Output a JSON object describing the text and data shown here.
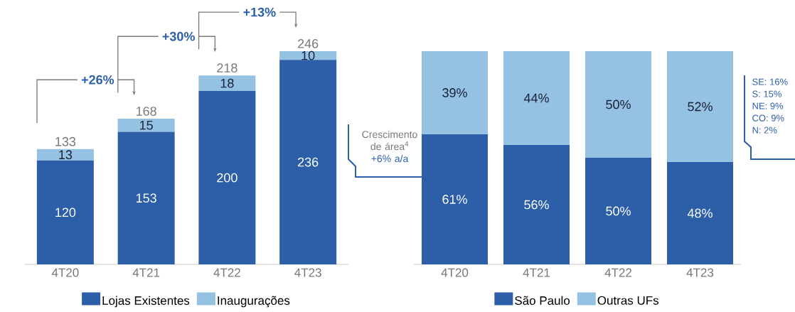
{
  "chart_data": [
    {
      "type": "bar",
      "stacked": true,
      "categories": [
        "4T20",
        "4T21",
        "4T22",
        "4T23"
      ],
      "series": [
        {
          "name": "Lojas Existentes",
          "color": "#2c5fa8",
          "values": [
            120,
            153,
            200,
            236
          ]
        },
        {
          "name": "Inaugurações",
          "color": "#95c1e3",
          "values": [
            13,
            15,
            18,
            10
          ]
        }
      ],
      "data_labels": true,
      "totals": [
        "133",
        "168",
        "218",
        "246"
      ],
      "legend": "bottom",
      "annotations": [
        "+26%",
        "+30%",
        "+13%",
        "Crescimento de área$^{4}$",
        "+6% a/a"
      ]
    },
    {
      "type": "bar",
      "stacked": true,
      "categories": [
        "4T20",
        "4T21",
        "4T22",
        "4T23"
      ],
      "series": [
        {
          "name": "São Paulo",
          "color": "#2c5fa8",
          "values": [
            61,
            56,
            50,
            48
          ],
          "value_labels": [
            "61%",
            "56%",
            "50%",
            "48%"
          ]
        },
        {
          "name": "Outras UFs",
          "color": "#95c1e3",
          "values": [
            39,
            44,
            50,
            52
          ],
          "value_labels": [
            "39%",
            "44%",
            "50%",
            "52%"
          ]
        }
      ],
      "legend": "bottom",
      "annotations": [
        "SE: 16%",
        "S: 15%",
        "NE: 9%",
        "CO: 9%",
        "N: 2%"
      ]
    }
  ]
}
